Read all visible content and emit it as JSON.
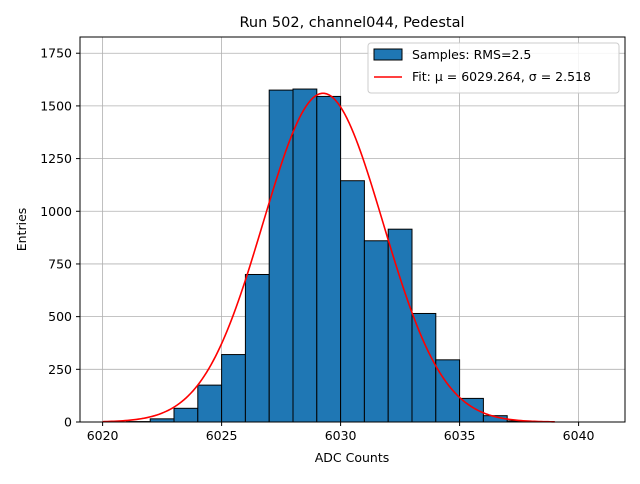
{
  "chart_data": {
    "type": "bar",
    "title": "Run 502, channel044, Pedestal",
    "xlabel": "ADC Counts",
    "ylabel": "Entries",
    "xlim": [
      6019.05,
      6041.95
    ],
    "ylim": [
      0,
      1827
    ],
    "xticks": [
      6020,
      6025,
      6030,
      6035,
      6040
    ],
    "yticks": [
      0,
      250,
      500,
      750,
      1000,
      1250,
      1500,
      1750
    ],
    "grid": true,
    "legend_position": "top-right",
    "histogram": {
      "name": "Samples: RMS=2.5",
      "color": "#1f77b4",
      "bin_edges": [
        6021,
        6022,
        6023,
        6024,
        6025,
        6026,
        6027,
        6028,
        6029,
        6030,
        6031,
        6032,
        6033,
        6034,
        6035,
        6036,
        6037,
        6038
      ],
      "counts": [
        2,
        15,
        65,
        175,
        320,
        700,
        1575,
        1580,
        1545,
        1145,
        860,
        915,
        515,
        295,
        112,
        30,
        5
      ]
    },
    "fit": {
      "name": "Fit: μ = 6029.264, σ = 2.518",
      "color": "#ff0000",
      "mu": 6029.264,
      "sigma": 2.518,
      "amplitude": 1560,
      "x_range": [
        6020,
        6039
      ]
    }
  }
}
